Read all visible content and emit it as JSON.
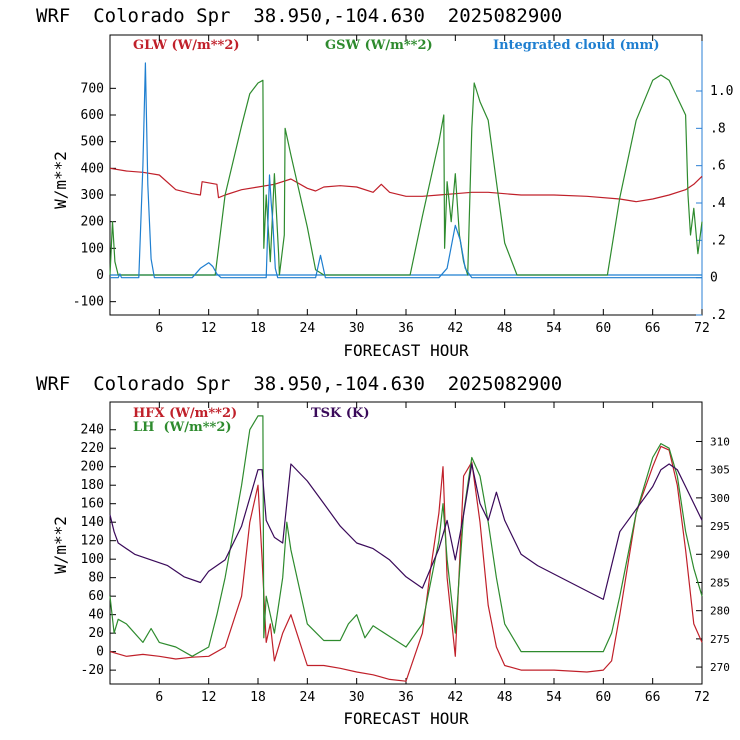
{
  "charts": [
    {
      "title": "WRF  Colorado Spr  38.950,-104.630  2025082900",
      "xlabel": "FORECAST HOUR",
      "ylabel": "W/m**2",
      "legend": [
        {
          "text": "GLW (W/m**2)",
          "color": "#c0202a"
        },
        {
          "text": "GSW (W/m**2)",
          "color": "#2e8b2e"
        },
        {
          "text": "Integrated cloud (mm)",
          "color": "#1f7fd0"
        }
      ]
    },
    {
      "title": "WRF  Colorado Spr  38.950,-104.630  2025082900",
      "xlabel": "FORECAST HOUR",
      "ylabel": "W/m**2",
      "legend": [
        {
          "text": "HFX (W/m**2)",
          "color": "#c0202a"
        },
        {
          "text": "LH  (W/m**2)",
          "color": "#2e8b2e"
        },
        {
          "text": "TSK (K)",
          "color": "#3a0a5a"
        }
      ]
    }
  ],
  "chart_data": [
    {
      "type": "line",
      "title": "WRF  Colorado Spr  38.950,-104.630  2025082900",
      "xlabel": "FORECAST HOUR",
      "ylabel": "W/m**2",
      "xlim": [
        0,
        72
      ],
      "ylim": [
        -150,
        900
      ],
      "y2lim": [
        -0.2,
        1.3
      ],
      "xticks": [
        6,
        12,
        18,
        24,
        30,
        36,
        42,
        48,
        54,
        60,
        66,
        72
      ],
      "yticks": [
        -100,
        0,
        100,
        200,
        300,
        400,
        500,
        600,
        700
      ],
      "y2ticks": [
        -0.2,
        0,
        0.2,
        0.4,
        0.6,
        0.8,
        1.0
      ],
      "y2ticklabels": [
        ".2",
        "0",
        ".2",
        ".4",
        ".6",
        ".8",
        "1.0"
      ],
      "series": [
        {
          "name": "GLW (W/m**2)",
          "color": "#c0202a",
          "axis": "left",
          "x": [
            0,
            2,
            4,
            6,
            8,
            10,
            11,
            11.2,
            13,
            13.2,
            14,
            16,
            18,
            20,
            22,
            24,
            25,
            26,
            28,
            30,
            32,
            33,
            34,
            36,
            38,
            40,
            42,
            44,
            46,
            48,
            50,
            54,
            58,
            62,
            64,
            66,
            68,
            70,
            71,
            72
          ],
          "y": [
            400,
            390,
            385,
            375,
            320,
            305,
            300,
            350,
            340,
            290,
            300,
            320,
            330,
            340,
            360,
            325,
            315,
            330,
            335,
            330,
            310,
            340,
            310,
            295,
            295,
            300,
            305,
            310,
            310,
            305,
            300,
            300,
            295,
            285,
            275,
            285,
            300,
            320,
            340,
            370
          ]
        },
        {
          "name": "GSW (W/m**2)",
          "color": "#2e8b2e",
          "axis": "left",
          "x": [
            0,
            0.3,
            0.6,
            1,
            12.8,
            14,
            16,
            17,
            18,
            18.6,
            18.7,
            19,
            19.5,
            20,
            20.5,
            20.6,
            21.2,
            21.3,
            22,
            24,
            25,
            26,
            36.5,
            38,
            40,
            40.6,
            40.7,
            41,
            41.5,
            42,
            42.5,
            43,
            43.5,
            44,
            44.3,
            44.6,
            45,
            46,
            47,
            48,
            49.5,
            60.5,
            62,
            64,
            66,
            67,
            68,
            70,
            70.3,
            70.6,
            71,
            71.5,
            72
          ],
          "y": [
            0,
            200,
            50,
            0,
            0,
            300,
            560,
            680,
            720,
            730,
            100,
            300,
            50,
            380,
            80,
            0,
            150,
            550,
            450,
            180,
            20,
            0,
            0,
            220,
            500,
            600,
            100,
            350,
            200,
            380,
            150,
            50,
            0,
            550,
            720,
            690,
            650,
            580,
            350,
            120,
            0,
            0,
            290,
            580,
            730,
            750,
            730,
            600,
            300,
            150,
            250,
            80,
            200
          ]
        },
        {
          "name": "Integrated cloud (mm)",
          "color": "#1f7fd0",
          "axis": "right",
          "x": [
            0,
            1,
            1.2,
            1.4,
            3.5,
            4,
            4.3,
            4.6,
            5,
            5.4,
            10,
            11,
            12,
            12.5,
            13,
            13.5,
            19,
            19.4,
            19.6,
            19.8,
            20.1,
            20.4,
            25,
            25.6,
            26.2,
            40,
            41,
            42,
            42.6,
            43.2,
            44,
            72
          ],
          "y": [
            0,
            0,
            0.02,
            0,
            0,
            0.6,
            1.15,
            0.5,
            0.1,
            0,
            0,
            0.05,
            0.08,
            0.06,
            0.02,
            0,
            0,
            0.55,
            0.4,
            0.3,
            0.05,
            0,
            0,
            0.12,
            0,
            0,
            0.05,
            0.28,
            0.2,
            0.05,
            0,
            0
          ]
        }
      ]
    },
    {
      "type": "line",
      "title": "WRF  Colorado Spr  38.950,-104.630  2025082900",
      "xlabel": "FORECAST HOUR",
      "ylabel": "W/m**2",
      "xlim": [
        0,
        72
      ],
      "ylim": [
        -35,
        270
      ],
      "y2lim": [
        267,
        317
      ],
      "xticks": [
        6,
        12,
        18,
        24,
        30,
        36,
        42,
        48,
        54,
        60,
        66,
        72
      ],
      "yticks": [
        -20,
        0,
        20,
        40,
        60,
        80,
        100,
        120,
        140,
        160,
        180,
        200,
        220,
        240
      ],
      "y2ticks": [
        270,
        275,
        280,
        285,
        290,
        295,
        300,
        305,
        310
      ],
      "series": [
        {
          "name": "HFX (W/m**2)",
          "color": "#c0202a",
          "axis": "left",
          "x": [
            0,
            2,
            4,
            6,
            8,
            10,
            12,
            14,
            16,
            17,
            18,
            18.5,
            19,
            19.5,
            20,
            21,
            22,
            24,
            26,
            28,
            30,
            32,
            34,
            36,
            38,
            39,
            40,
            40.5,
            41,
            42,
            43,
            44,
            45,
            46,
            47,
            48,
            50,
            54,
            58,
            60,
            61,
            62,
            64,
            66,
            67,
            68,
            69,
            70,
            71,
            72
          ],
          "y": [
            0,
            -5,
            -3,
            -5,
            -8,
            -6,
            -5,
            5,
            60,
            140,
            180,
            100,
            10,
            30,
            -10,
            20,
            40,
            -15,
            -15,
            -18,
            -22,
            -25,
            -30,
            -32,
            20,
            90,
            150,
            200,
            80,
            -5,
            190,
            205,
            140,
            50,
            5,
            -15,
            -20,
            -20,
            -22,
            -20,
            -10,
            40,
            150,
            200,
            222,
            218,
            180,
            110,
            30,
            10
          ]
        },
        {
          "name": "LH  (W/m**2)",
          "color": "#2e8b2e",
          "axis": "left",
          "x": [
            0,
            0.5,
            1,
            2,
            4,
            5,
            6,
            8,
            10,
            12,
            13,
            14,
            16,
            17,
            18,
            18.6,
            18.7,
            19,
            20,
            21,
            21.5,
            22,
            23,
            24,
            26,
            28,
            29,
            30,
            31,
            32,
            36,
            38,
            40,
            40.5,
            41,
            42,
            43,
            44,
            45,
            46,
            47,
            48,
            50,
            56,
            60,
            61,
            62,
            64,
            66,
            67,
            68,
            69,
            70,
            71,
            72
          ],
          "y": [
            60,
            20,
            35,
            30,
            10,
            25,
            10,
            5,
            -5,
            5,
            40,
            80,
            180,
            240,
            255,
            255,
            15,
            60,
            20,
            80,
            140,
            110,
            70,
            30,
            12,
            12,
            30,
            40,
            15,
            28,
            5,
            30,
            120,
            160,
            100,
            20,
            150,
            210,
            190,
            140,
            80,
            30,
            0,
            0,
            0,
            20,
            60,
            150,
            210,
            225,
            220,
            190,
            130,
            90,
            60
          ]
        },
        {
          "name": "TSK (K)",
          "color": "#3a0a5a",
          "axis": "right",
          "x": [
            0,
            0.5,
            1,
            3,
            5,
            7,
            9,
            11,
            12,
            14,
            16,
            17,
            18,
            18.5,
            19,
            20,
            21,
            22,
            24,
            26,
            28,
            30,
            32,
            34,
            36,
            38,
            40,
            41,
            42,
            43,
            44,
            45,
            46,
            47,
            48,
            50,
            52,
            56,
            60,
            62,
            64,
            66,
            67,
            68,
            69,
            70,
            71,
            72
          ],
          "y": [
            297,
            294,
            292,
            290,
            289,
            288,
            286,
            285,
            287,
            289,
            295,
            300,
            305,
            305,
            296,
            293,
            292,
            306,
            303,
            299,
            295,
            292,
            291,
            289,
            286,
            284,
            291,
            296,
            289,
            297,
            306,
            299,
            296,
            301,
            296,
            290,
            288,
            285,
            282,
            294,
            298,
            302,
            305,
            306,
            305,
            302,
            299,
            296
          ]
        }
      ]
    }
  ]
}
